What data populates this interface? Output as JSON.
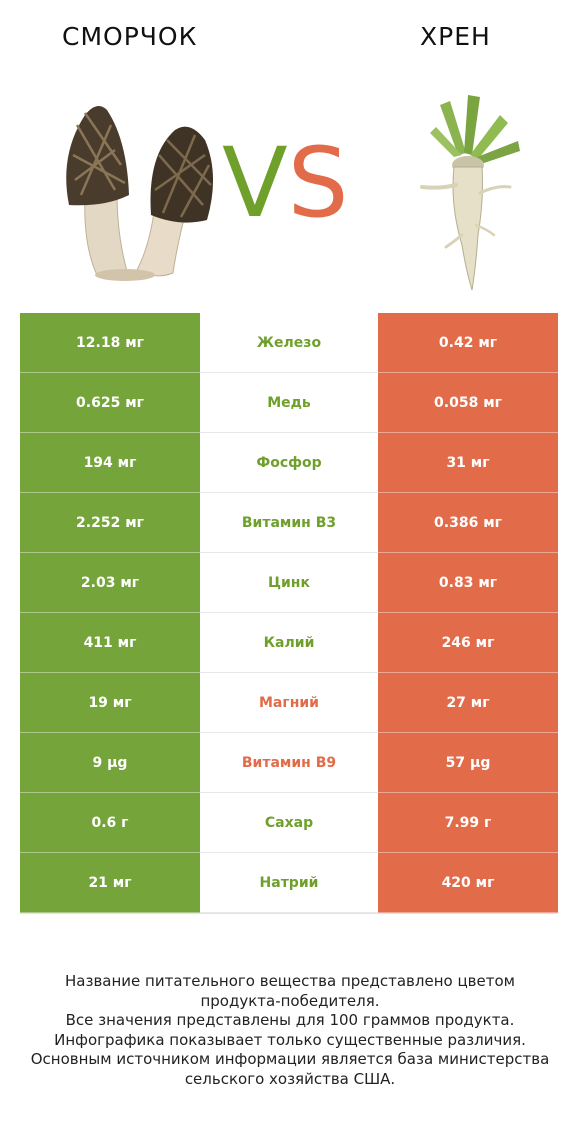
{
  "header": {
    "left_title": "СМОРЧОК",
    "right_title": "ХРЕН",
    "vs_v": "V",
    "vs_s": "S"
  },
  "colors": {
    "green": "#75a43a",
    "orange": "#e26b4a"
  },
  "rows": [
    {
      "left": "12.18 мг",
      "nutrient": "Железо",
      "right": "0.42 мг",
      "winner": "green"
    },
    {
      "left": "0.625 мг",
      "nutrient": "Медь",
      "right": "0.058 мг",
      "winner": "green"
    },
    {
      "left": "194 мг",
      "nutrient": "Фосфор",
      "right": "31 мг",
      "winner": "green"
    },
    {
      "left": "2.252 мг",
      "nutrient": "Витамин B3",
      "right": "0.386 мг",
      "winner": "green"
    },
    {
      "left": "2.03 мг",
      "nutrient": "Цинк",
      "right": "0.83 мг",
      "winner": "green"
    },
    {
      "left": "411 мг",
      "nutrient": "Калий",
      "right": "246 мг",
      "winner": "green"
    },
    {
      "left": "19 мг",
      "nutrient": "Магний",
      "right": "27 мг",
      "winner": "orange"
    },
    {
      "left": "9 µg",
      "nutrient": "Витамин B9",
      "right": "57 µg",
      "winner": "orange"
    },
    {
      "left": "0.6 г",
      "nutrient": "Сахар",
      "right": "7.99 г",
      "winner": "green"
    },
    {
      "left": "21 мг",
      "nutrient": "Натрий",
      "right": "420 мг",
      "winner": "green"
    }
  ],
  "footer": {
    "line1": "Название питательного вещества представлено цветом",
    "line2": "продукта-победителя.",
    "line3": "Все значения представлены для 100 граммов продукта.",
    "line4": "Инфографика показывает только существенные различия.",
    "line5": "Основным источником информации является база министерства",
    "line6": "сельского хозяйства США."
  }
}
